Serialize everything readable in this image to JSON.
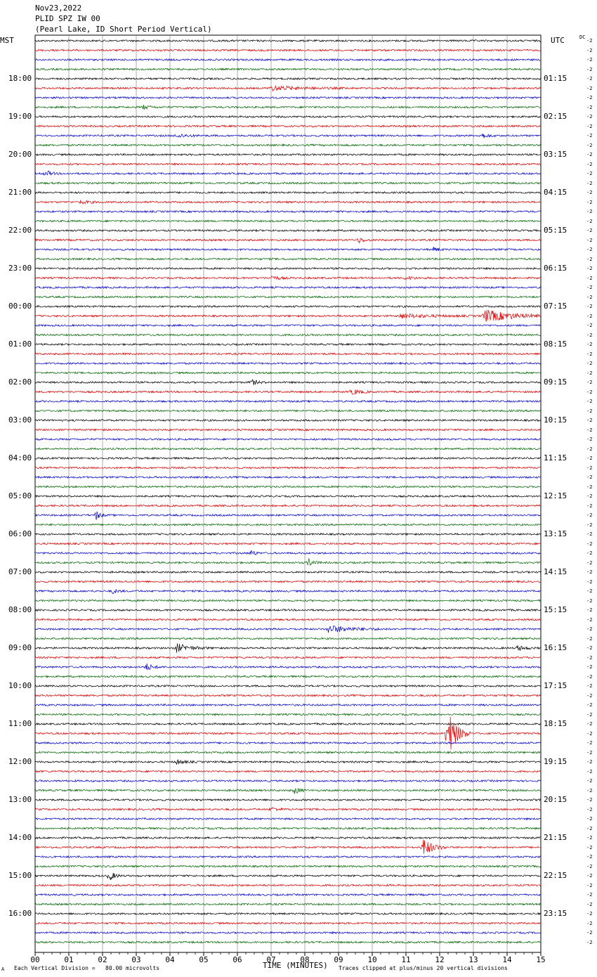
{
  "header": {
    "date": "Nov23,2022",
    "station": "PLID SPZ IW 00",
    "description": "(Pearl Lake, ID Short Period Vertical)",
    "left_tz": "MST",
    "right_tz": "UTC",
    "dc_label": "DC",
    "right_trace_label": "-2"
  },
  "footer": {
    "corner_mark": "A",
    "vertical_division": "Each Vertical Division =   80.00 microvolts",
    "xlabel": "TIME (MINUTES)",
    "clip_note": "Traces clipped at plus/minus 20 vertical divisions"
  },
  "chart_data": {
    "type": "line",
    "title": "PLID SPZ IW 00",
    "subtitle": "(Pearl Lake, ID Short Period Vertical)",
    "xlabel": "TIME (MINUTES)",
    "xlim": [
      0,
      15
    ],
    "x_ticks": [
      "00",
      "01",
      "02",
      "03",
      "04",
      "05",
      "06",
      "07",
      "08",
      "09",
      "10",
      "11",
      "12",
      "13",
      "14",
      "15"
    ],
    "grid": "vertical lines each minute",
    "trace_count": 96,
    "traces_per_hour": 4,
    "trace_minutes": 15,
    "trace_colors": [
      "#000000",
      "#dd0000",
      "#0000cc",
      "#006600"
    ],
    "left_hour_labels": [
      "18:00",
      "19:00",
      "20:00",
      "21:00",
      "22:00",
      "23:00",
      "00:00",
      "01:00",
      "02:00",
      "03:00",
      "04:00",
      "05:00",
      "06:00",
      "07:00",
      "08:00",
      "09:00",
      "10:00",
      "11:00",
      "12:00",
      "13:00",
      "14:00",
      "15:00",
      "16:00"
    ],
    "right_hour_labels": [
      "01:15",
      "02:15",
      "03:15",
      "04:15",
      "05:15",
      "06:15",
      "07:15",
      "08:15",
      "09:15",
      "10:15",
      "11:15",
      "12:15",
      "13:15",
      "14:15",
      "15:15",
      "16:15",
      "17:15",
      "18:15",
      "19:15",
      "20:15",
      "21:15",
      "22:15",
      "23:15"
    ],
    "first_labeled_trace": 4,
    "events": [
      {
        "trace": 5,
        "minute": 7.0,
        "amplitude": 3,
        "duration": 2.5
      },
      {
        "trace": 7,
        "minute": 3.2,
        "amplitude": 3,
        "duration": 0.5
      },
      {
        "trace": 10,
        "minute": 4.2,
        "amplitude": 3,
        "duration": 0.8
      },
      {
        "trace": 10,
        "minute": 13.2,
        "amplitude": 4,
        "duration": 0.6
      },
      {
        "trace": 14,
        "minute": 0.3,
        "amplitude": 5,
        "duration": 0.4
      },
      {
        "trace": 17,
        "minute": 1.3,
        "amplitude": 2.5,
        "duration": 0.8
      },
      {
        "trace": 21,
        "minute": 9.6,
        "amplitude": 4,
        "duration": 0.4
      },
      {
        "trace": 22,
        "minute": 11.8,
        "amplitude": 3,
        "duration": 0.4
      },
      {
        "trace": 25,
        "minute": 7.0,
        "amplitude": 3,
        "duration": 0.6
      },
      {
        "trace": 25,
        "minute": 11.0,
        "amplitude": 2.5,
        "duration": 0.6
      },
      {
        "trace": 29,
        "minute": 13.3,
        "amplitude": 9,
        "duration": 2.2
      },
      {
        "trace": 29,
        "minute": 10.8,
        "amplitude": 3,
        "duration": 2.5
      },
      {
        "trace": 36,
        "minute": 6.4,
        "amplitude": 4,
        "duration": 0.5
      },
      {
        "trace": 37,
        "minute": 9.4,
        "amplitude": 4,
        "duration": 0.6
      },
      {
        "trace": 50,
        "minute": 1.8,
        "amplitude": 8,
        "duration": 0.3
      },
      {
        "trace": 54,
        "minute": 6.4,
        "amplitude": 5,
        "duration": 0.3
      },
      {
        "trace": 55,
        "minute": 8.1,
        "amplitude": 6,
        "duration": 0.4
      },
      {
        "trace": 58,
        "minute": 2.3,
        "amplitude": 3,
        "duration": 0.4
      },
      {
        "trace": 62,
        "minute": 8.7,
        "amplitude": 5,
        "duration": 1.8
      },
      {
        "trace": 64,
        "minute": 4.2,
        "amplitude": 6,
        "duration": 1.0
      },
      {
        "trace": 64,
        "minute": 14.3,
        "amplitude": 4,
        "duration": 0.6
      },
      {
        "trace": 66,
        "minute": 3.3,
        "amplitude": 5,
        "duration": 0.5
      },
      {
        "trace": 73,
        "minute": 12.2,
        "amplitude": 40,
        "duration": 0.7,
        "clipped": true
      },
      {
        "trace": 76,
        "minute": 4.2,
        "amplitude": 3,
        "duration": 0.6
      },
      {
        "trace": 79,
        "minute": 7.7,
        "amplitude": 5,
        "duration": 0.4
      },
      {
        "trace": 81,
        "minute": 7.0,
        "amplitude": 3,
        "duration": 0.5
      },
      {
        "trace": 85,
        "minute": 11.5,
        "amplitude": 14,
        "duration": 0.7
      },
      {
        "trace": 88,
        "minute": 2.2,
        "amplitude": 7,
        "duration": 0.4
      }
    ]
  }
}
